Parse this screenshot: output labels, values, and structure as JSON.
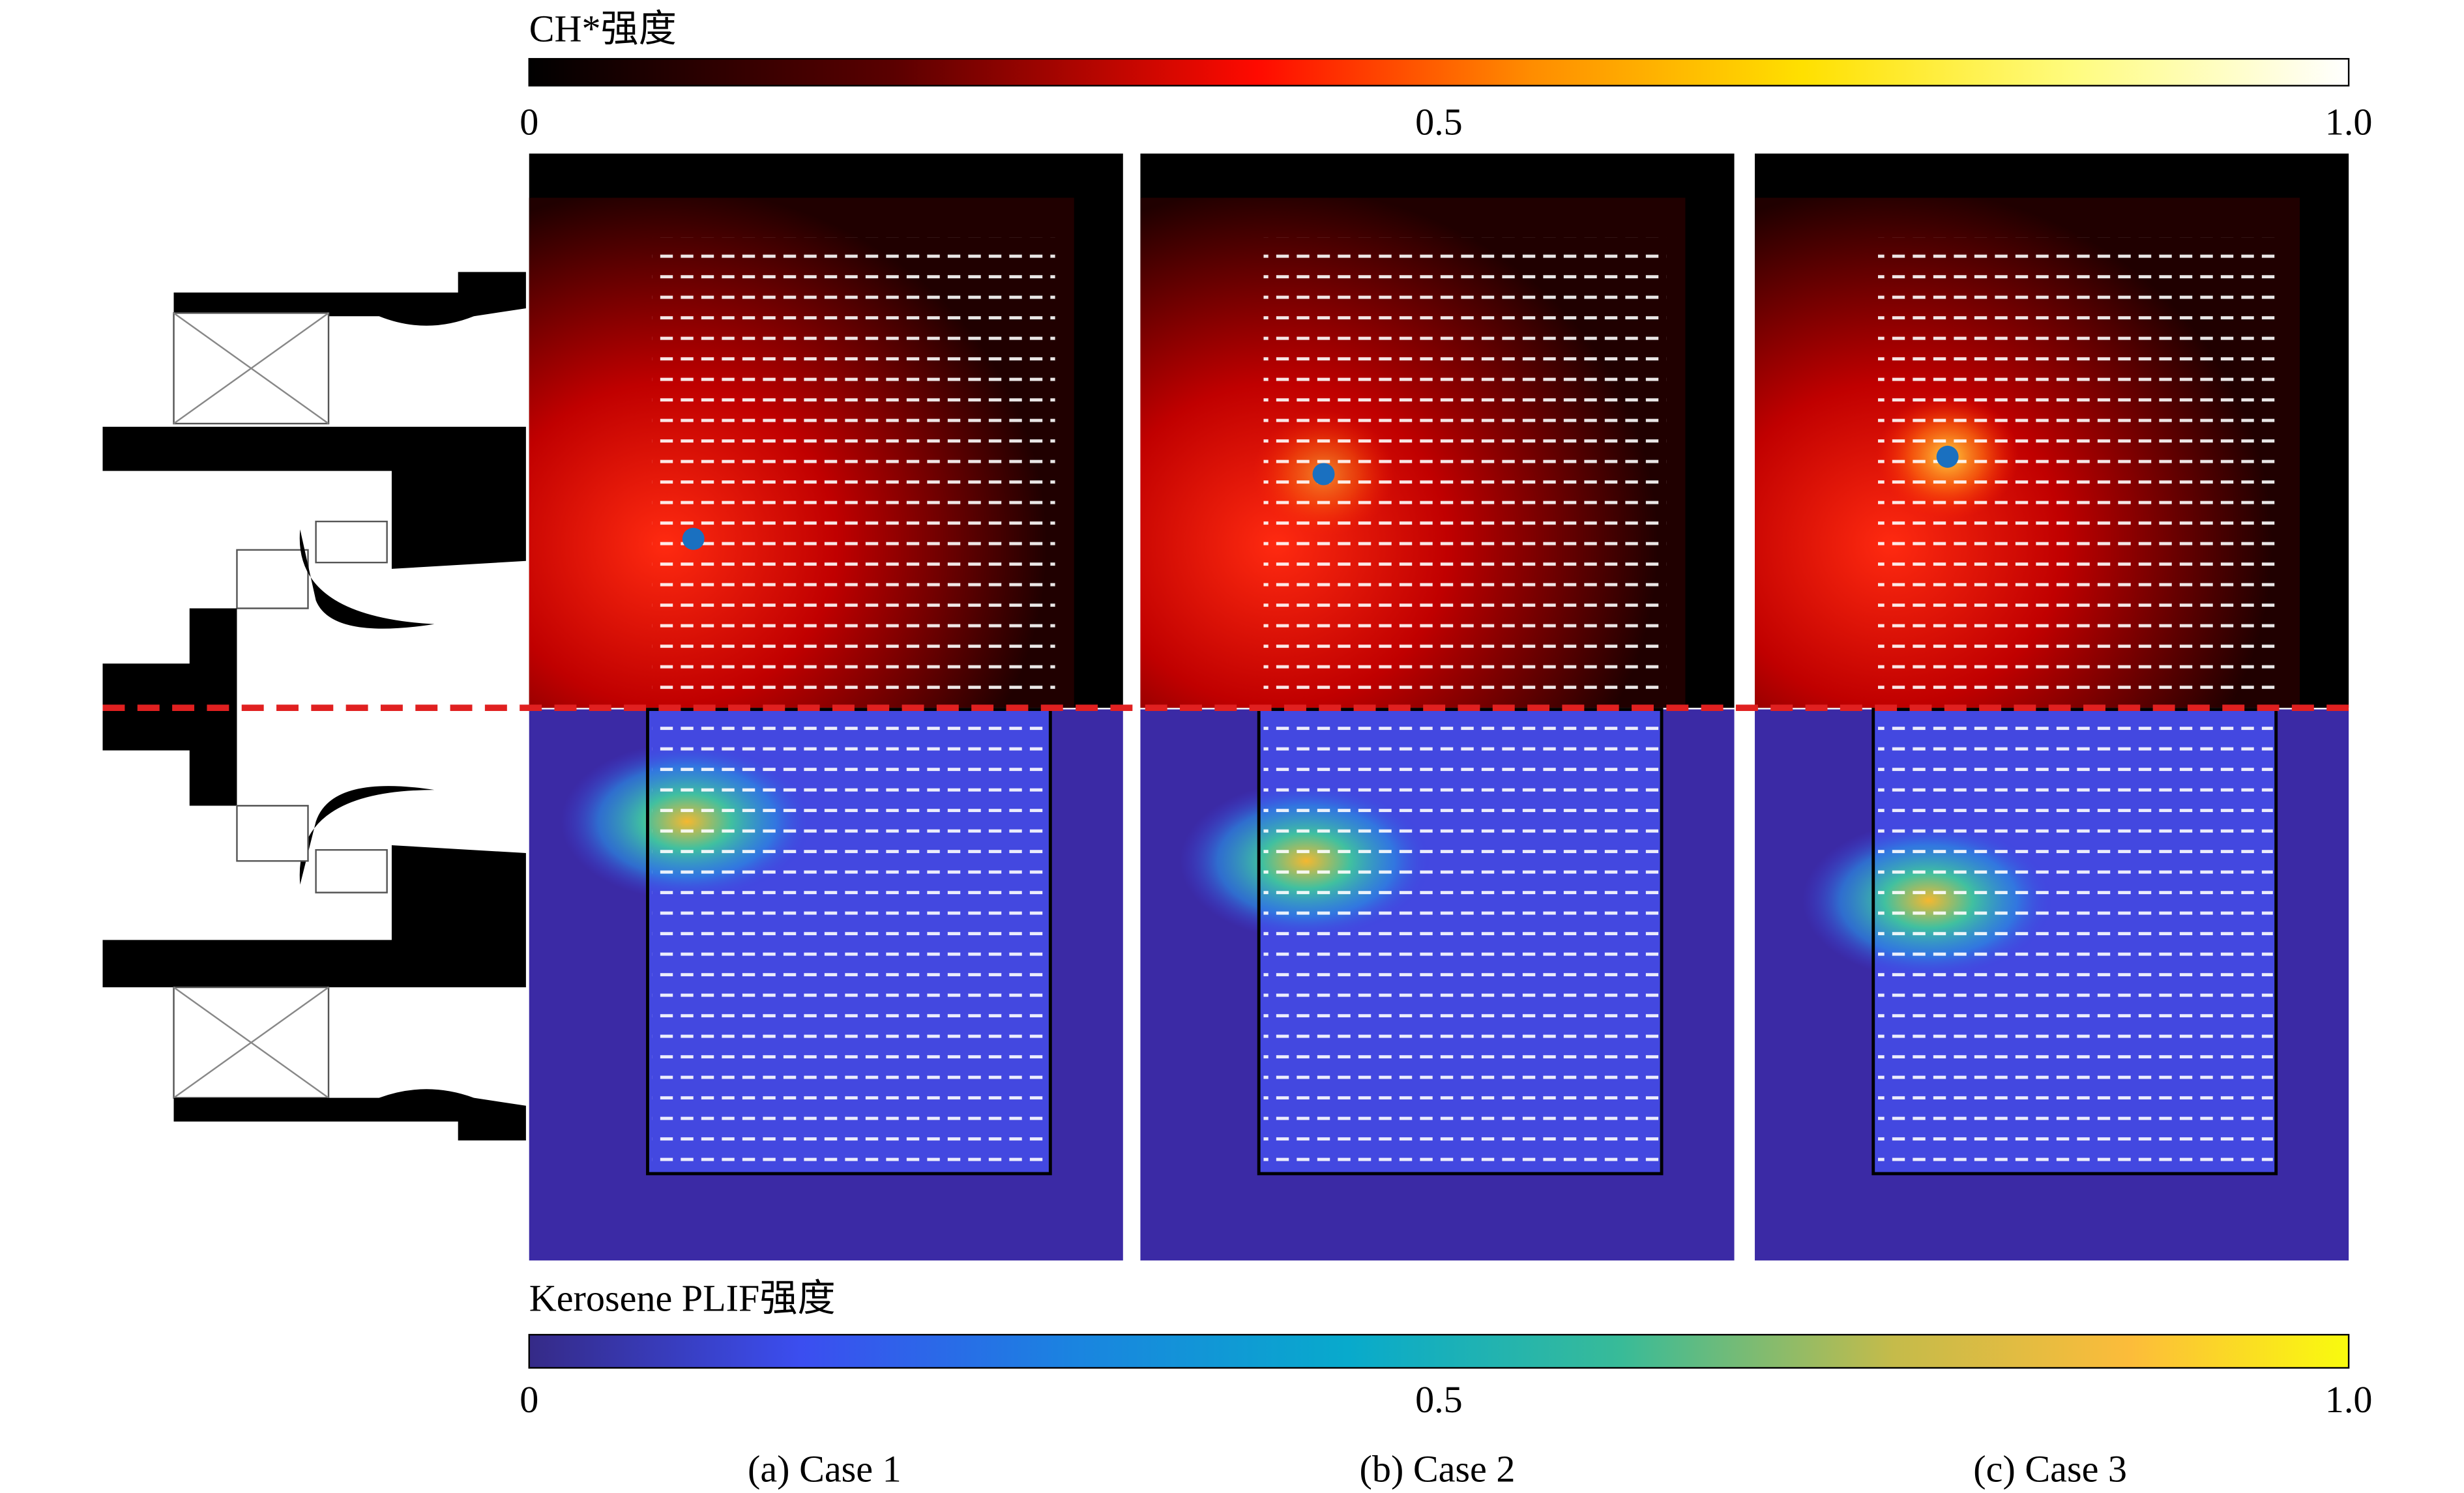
{
  "colorbars": [
    {
      "title": "CH*强度",
      "ticks": [
        "0",
        "0.5",
        "1.0"
      ]
    },
    {
      "title": "Kerosene PLIF强度",
      "ticks": [
        "0",
        "0.5",
        "1.0"
      ]
    }
  ],
  "cases": [
    "(a) Case 1",
    "(b) Case 2",
    "(c) Case 3"
  ]
}
